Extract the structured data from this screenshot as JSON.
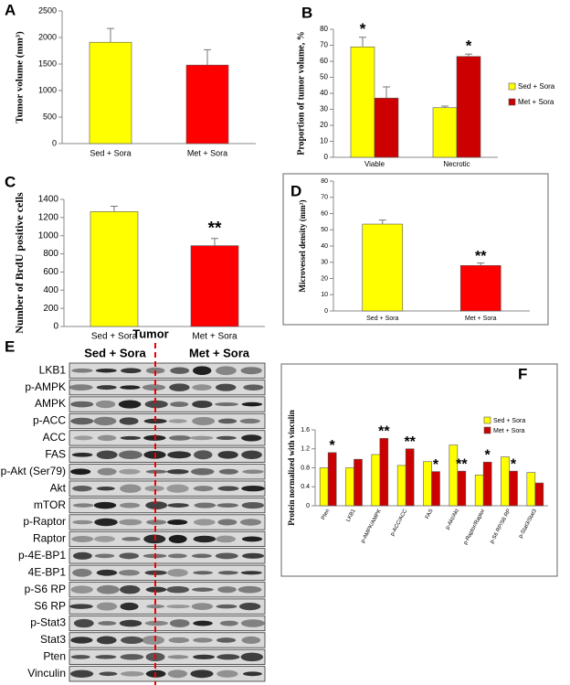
{
  "chart_data": [
    {
      "type": "bar",
      "panel": "A",
      "y_label": "Tumor volume (mm³)",
      "categories": [
        "Sed + Sora",
        "Met + Sora"
      ],
      "values": [
        1910,
        1480
      ],
      "errors": [
        260,
        290
      ],
      "colors": [
        "#ffff00",
        "#ff0000"
      ],
      "ylim": [
        0,
        2500
      ],
      "yticks": [
        0,
        500,
        1000,
        1500,
        2000,
        2500
      ]
    },
    {
      "type": "bar",
      "panel": "B",
      "y_label": "Proportion of tumor volume, %",
      "categories": [
        "Viable",
        "Necrotic"
      ],
      "series": [
        {
          "name": "Sed + Sora",
          "color": "#ffff00",
          "values": [
            69,
            31
          ],
          "errors": [
            6,
            1
          ],
          "annotations": [
            "*",
            null
          ]
        },
        {
          "name": "Met + Sora",
          "color": "#cc0000",
          "values": [
            37,
            63
          ],
          "errors": [
            7,
            1.5
          ],
          "annotations": [
            null,
            "*"
          ]
        }
      ],
      "ylim": [
        0,
        80
      ],
      "yticks": [
        0,
        10,
        20,
        30,
        40,
        50,
        60,
        70,
        80
      ],
      "legend": "right"
    },
    {
      "type": "bar",
      "panel": "C",
      "y_label": "Number of BrdU positive cells",
      "categories": [
        "Sed + Sora",
        "Met + Sora"
      ],
      "values": [
        1265,
        890
      ],
      "errors": [
        60,
        80
      ],
      "colors": [
        "#ffff00",
        "#ff0000"
      ],
      "annotations": [
        null,
        "**"
      ],
      "ylim": [
        0,
        1400
      ],
      "yticks": [
        0,
        200,
        400,
        600,
        800,
        1000,
        1200,
        1400
      ]
    },
    {
      "type": "bar",
      "panel": "D",
      "y_label": "Microvessel density (mm²)",
      "categories": [
        "Sed + Sora",
        "Met + Sora"
      ],
      "values": [
        53.5,
        28
      ],
      "errors": [
        2.5,
        1.5
      ],
      "colors": [
        "#ffff00",
        "#ff0000"
      ],
      "annotations": [
        null,
        "**"
      ],
      "ylim": [
        0,
        80
      ],
      "yticks": [
        0,
        10,
        20,
        30,
        40,
        50,
        60,
        70,
        80
      ]
    },
    {
      "type": "bar",
      "panel": "F",
      "y_label": "Protein normalized with vinculin",
      "categories": [
        "Pten",
        "LKB1",
        "p-AMPK/AMPK",
        "p-ACC/ACC",
        "FAS",
        "p-Akt/Akt",
        "p-Raptor/Raptor",
        "p-S6 RP/S6 RP",
        "p-Stat3/Stat3"
      ],
      "series": [
        {
          "name": "Sed + Sora",
          "color": "#ffff00",
          "values": [
            0.8,
            0.8,
            1.08,
            0.85,
            0.93,
            1.28,
            0.65,
            1.03,
            0.7
          ],
          "annotations": [
            null,
            null,
            null,
            null,
            null,
            null,
            null,
            null,
            null
          ]
        },
        {
          "name": "Met + Sora",
          "color": "#cc0000",
          "values": [
            1.12,
            0.98,
            1.42,
            1.2,
            0.72,
            0.73,
            0.92,
            0.73,
            0.48
          ],
          "annotations": [
            "*",
            null,
            "**",
            "**",
            "*",
            "**",
            "*",
            "*",
            null
          ]
        }
      ],
      "ylim": [
        0,
        1.6
      ],
      "yticks": [
        0,
        0.4,
        0.8,
        1.2,
        1.6
      ],
      "legend": "top-right"
    }
  ],
  "blot": {
    "panel": "E",
    "title": "Tumor",
    "groups": [
      "Sed + Sora",
      "Met + Sora"
    ],
    "rows": [
      "LKB1",
      "p-AMPK",
      "AMPK",
      "p-ACC",
      "ACC",
      "FAS",
      "p-Akt (Ser79)",
      "Akt",
      "mTOR",
      "p-Raptor",
      "Raptor",
      "p-4E-BP1",
      "4E-BP1",
      "p-S6 RP",
      "S6 RP",
      "p-Stat3",
      "Stat3",
      "Pten",
      "Vinculin"
    ]
  }
}
